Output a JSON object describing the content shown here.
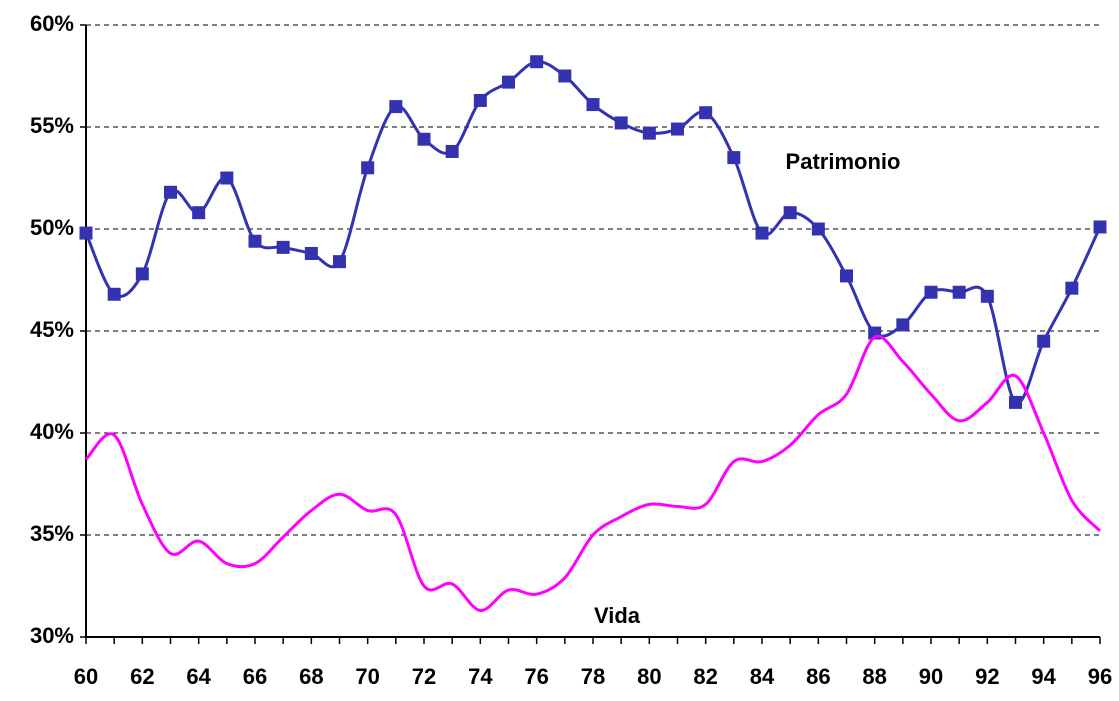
{
  "chart_data": {
    "type": "line",
    "x": [
      60,
      61,
      62,
      63,
      64,
      65,
      66,
      67,
      68,
      69,
      70,
      71,
      72,
      73,
      74,
      75,
      76,
      77,
      78,
      79,
      80,
      81,
      82,
      83,
      84,
      85,
      86,
      87,
      88,
      89,
      90,
      91,
      92,
      93,
      94,
      95,
      96
    ],
    "series": [
      {
        "name": "Patrimonio",
        "color": "#3333b2",
        "marker": "square",
        "values": [
          49.8,
          46.8,
          47.8,
          51.8,
          50.8,
          52.5,
          49.4,
          49.1,
          48.8,
          48.4,
          53.0,
          56.0,
          54.4,
          53.8,
          56.3,
          57.2,
          58.2,
          57.5,
          56.1,
          55.2,
          54.7,
          54.9,
          55.7,
          53.5,
          49.8,
          50.8,
          50.0,
          47.7,
          44.9,
          45.3,
          46.9,
          46.9,
          46.7,
          41.5,
          44.5,
          47.1,
          50.1
        ]
      },
      {
        "name": "Vida",
        "color": "#ff00ff",
        "values": [
          38.7,
          39.9,
          36.5,
          34.1,
          34.7,
          33.6,
          33.6,
          34.9,
          36.2,
          37.0,
          36.2,
          36.0,
          32.5,
          32.6,
          31.3,
          32.3,
          32.1,
          32.9,
          35.0,
          35.9,
          36.5,
          36.4,
          36.5,
          38.6,
          38.6,
          39.4,
          40.9,
          41.9,
          44.7,
          43.5,
          41.9,
          40.6,
          41.5,
          42.8,
          40.0,
          36.7,
          35.2
        ]
      }
    ],
    "xlim": [
      60,
      96
    ],
    "xticks": [
      60,
      62,
      64,
      66,
      68,
      70,
      72,
      74,
      76,
      78,
      80,
      82,
      84,
      86,
      88,
      90,
      92,
      94,
      96
    ],
    "ylim": [
      30,
      60
    ],
    "yticks": [
      {
        "value": 30,
        "label": "30%"
      },
      {
        "value": 35,
        "label": "35%"
      },
      {
        "value": 40,
        "label": "40%"
      },
      {
        "value": 45,
        "label": "45%"
      },
      {
        "value": 50,
        "label": "50%"
      },
      {
        "value": 55,
        "label": "55%"
      },
      {
        "value": 60,
        "label": "60%"
      }
    ],
    "grid": true
  }
}
